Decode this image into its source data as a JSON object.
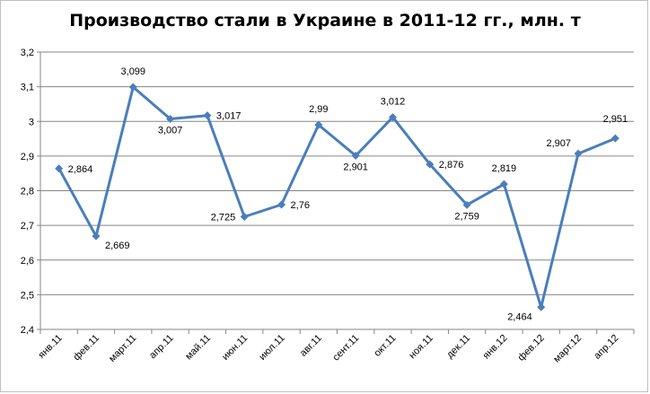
{
  "chart_data": {
    "type": "line",
    "title": "Производство стали в Украине в 2011-12 гг., млн. т",
    "xlabel": "",
    "ylabel": "",
    "ylim": [
      2.4,
      3.2
    ],
    "yticks": [
      "2,4",
      "2,5",
      "2,6",
      "2,7",
      "2,8",
      "2,9",
      "3",
      "3,1",
      "3,2"
    ],
    "grid": true,
    "legend": "none",
    "line_color": "#4a7ebb",
    "categories": [
      "янв.11",
      "фев.11",
      "март.11",
      "апр.11",
      "май.11",
      "июн.11",
      "июл.11",
      "авг.11",
      "сент.11",
      "окт.11",
      "ноя.11",
      "дек.11",
      "янв.12",
      "фев.12",
      "март.12",
      "апр.12"
    ],
    "values": [
      2.864,
      2.669,
      3.099,
      3.007,
      3.017,
      2.725,
      2.76,
      2.99,
      2.901,
      3.012,
      2.876,
      2.759,
      2.819,
      2.464,
      2.907,
      2.951
    ],
    "data_labels": [
      "2,864",
      "2,669",
      "3,099",
      "3,007",
      "3,017",
      "2,725",
      "2,76",
      "2,99",
      "2,901",
      "3,012",
      "2,876",
      "2,759",
      "2,819",
      "2,464",
      "2,907",
      "2,951"
    ]
  }
}
